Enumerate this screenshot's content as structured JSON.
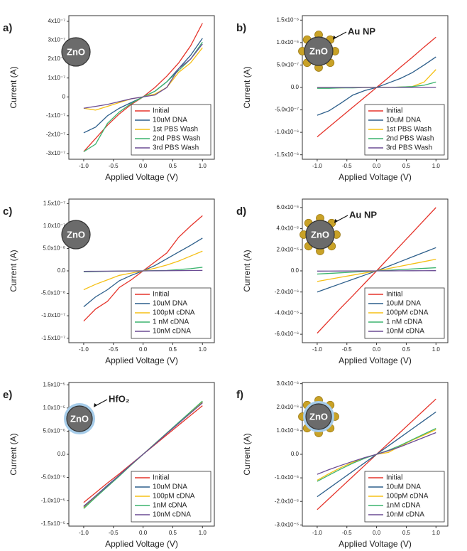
{
  "chart_data": [
    {
      "type": "line",
      "panel_label": "a)",
      "annotations": [
        "ZnO"
      ],
      "y_label": "Current (A)",
      "x_label": "Applied Voltage (V)",
      "x": [
        -1.0,
        -0.8,
        -0.6,
        -0.4,
        -0.2,
        0,
        0.2,
        0.4,
        0.6,
        0.8,
        1.0
      ],
      "xlim": [
        -1.25,
        1.2
      ],
      "xticks": [
        {
          "value": -1,
          "label": "-1.0"
        },
        -0.5,
        {
          "value": 0,
          "label": "0.0"
        },
        0.5,
        {
          "value": 1,
          "label": "1.0"
        }
      ],
      "ylim": [
        -3.3e-07,
        4.3e-07
      ],
      "yticks": [
        {
          "value": 4e-07,
          "label": "4x10⁻⁷"
        },
        {
          "value": 3e-07,
          "label": "3x10⁻⁷"
        },
        {
          "value": 2e-07,
          "label": "2x10⁻⁷"
        },
        {
          "value": 1e-07,
          "label": "1x10⁻⁷"
        },
        0,
        {
          "value": -1e-07,
          "label": "-1x10⁻⁷"
        },
        {
          "value": -2e-07,
          "label": "-2x10⁻⁷"
        },
        {
          "value": -3e-07,
          "label": "-3x10⁻⁷"
        }
      ],
      "legend": "lower right",
      "series": [
        {
          "name": "Initial",
          "color": "#e5332a",
          "values": [
            -2.9e-07,
            -2.2e-07,
            -1.5e-07,
            -9e-08,
            -4e-08,
            0,
            5e-08,
            1.1e-07,
            1.8e-07,
            2.7e-07,
            3.9e-07
          ]
        },
        {
          "name": "10uM DNA",
          "color": "#2d5f8b",
          "values": [
            -1.9e-07,
            -1.6e-07,
            -1e-07,
            -6e-08,
            -3e-08,
            0,
            3e-08,
            8e-08,
            1.5e-07,
            2.2e-07,
            3.1e-07
          ]
        },
        {
          "name": "1st PBS Wash",
          "color": "#f5c016",
          "values": [
            -6e-08,
            -7e-08,
            -5e-08,
            -3e-08,
            -1e-08,
            0,
            1.5e-08,
            5e-08,
            1.3e-07,
            1.8e-07,
            2.6e-07
          ]
        },
        {
          "name": "2nd PBS Wash",
          "color": "#3cb46e",
          "values": [
            -2.9e-07,
            -2.5e-07,
            -1.4e-07,
            -8e-08,
            -3.5e-08,
            0,
            3e-08,
            8e-08,
            1.4e-07,
            2e-07,
            2.9e-07
          ]
        },
        {
          "name": "3rd PBS Wash",
          "color": "#6b4c94",
          "values": [
            -6e-08,
            -5e-08,
            -4e-08,
            -2.5e-08,
            -1e-08,
            0,
            1e-08,
            5e-08,
            1.5e-07,
            2e-07,
            2.8e-07
          ]
        }
      ]
    },
    {
      "type": "line",
      "panel_label": "b)",
      "annotations": [
        "ZnO",
        "Au NP"
      ],
      "y_label": "Current (A)",
      "x_label": "Applied Voltage (V)",
      "x": [
        -1.0,
        -0.8,
        -0.6,
        -0.4,
        -0.2,
        0,
        0.2,
        0.4,
        0.6,
        0.8,
        1.0
      ],
      "xlim": [
        -1.25,
        1.2
      ],
      "xticks": [
        {
          "value": -1,
          "label": "-1.0"
        },
        -0.5,
        {
          "value": 0,
          "label": "0.0"
        },
        0.5,
        {
          "value": 1,
          "label": "1.0"
        }
      ],
      "ylim": [
        -1.6e-06,
        1.6e-06
      ],
      "yticks": [
        {
          "value": 1.5e-06,
          "label": "1.5x10⁻⁶"
        },
        {
          "value": 1e-06,
          "label": "1.0x10⁻⁶"
        },
        {
          "value": 5e-07,
          "label": "5.0x10⁻⁷"
        },
        {
          "value": 0,
          "label": "0.0"
        },
        {
          "value": -5e-07,
          "label": "-5.0x10⁻⁷"
        },
        {
          "value": -1e-06,
          "label": "-1.0x10⁻⁶"
        },
        {
          "value": -1.5e-06,
          "label": "-1.5x10⁻⁶"
        }
      ],
      "legend": "lower right",
      "series": [
        {
          "name": "Initial",
          "color": "#e5332a",
          "values": [
            -1.1e-06,
            -8.8e-07,
            -6.6e-07,
            -4.4e-07,
            -2.2e-07,
            0,
            2.2e-07,
            4.5e-07,
            6.7e-07,
            9e-07,
            1.12e-06
          ]
        },
        {
          "name": "10uM DNA",
          "color": "#2d5f8b",
          "values": [
            -6.2e-07,
            -5.2e-07,
            -3.5e-07,
            -1.7e-07,
            -7e-08,
            0,
            1e-07,
            2e-07,
            3.3e-07,
            5e-07,
            6.8e-07
          ]
        },
        {
          "name": "1st PBS Wash",
          "color": "#f5c016",
          "values": [
            -1e-08,
            -1e-08,
            -1e-08,
            0,
            0,
            0,
            0,
            1e-08,
            2e-08,
            1.2e-07,
            4e-07
          ]
        },
        {
          "name": "2nd PBS Wash",
          "color": "#3cb46e",
          "values": [
            -2e-08,
            -2e-08,
            -1e-08,
            -1e-08,
            0,
            0,
            0,
            1e-08,
            2e-08,
            5e-08,
            1.2e-07
          ]
        },
        {
          "name": "3rd PBS Wash",
          "color": "#6b4c94",
          "values": [
            0,
            0,
            0,
            0,
            0,
            0,
            0,
            0,
            0,
            0,
            0
          ]
        }
      ]
    },
    {
      "type": "line",
      "panel_label": "c)",
      "annotations": [
        "ZnO"
      ],
      "y_label": "Current (A)",
      "x_label": "Applied Voltage (V)",
      "x": [
        -1.0,
        -0.8,
        -0.6,
        -0.4,
        -0.2,
        0,
        0.2,
        0.4,
        0.6,
        0.8,
        1.0
      ],
      "xlim": [
        -1.25,
        1.2
      ],
      "xticks": [
        {
          "value": -1,
          "label": "-1.0"
        },
        -0.5,
        {
          "value": 0,
          "label": "0.0"
        },
        0.5,
        {
          "value": 1,
          "label": "1.0"
        }
      ],
      "ylim": [
        -1.6e-07,
        1.6e-07
      ],
      "yticks": [
        {
          "value": 1.5e-07,
          "label": "1.5x10⁻⁷"
        },
        {
          "value": 1e-07,
          "label": "1.0x10⁻⁷"
        },
        {
          "value": 5e-08,
          "label": "5.0x10⁻⁸"
        },
        {
          "value": 0,
          "label": "0.0"
        },
        {
          "value": -5e-08,
          "label": "-5.0x10⁻⁸"
        },
        {
          "value": -1e-07,
          "label": "-1.0x10⁻⁷"
        },
        {
          "value": -1.5e-07,
          "label": "-1.5x10⁻⁷"
        }
      ],
      "legend": "lower right",
      "series": [
        {
          "name": "Initial",
          "color": "#e5332a",
          "values": [
            -1.12e-07,
            -8.5e-08,
            -6.8e-08,
            -3.7e-08,
            -2e-08,
            0,
            2e-08,
            4e-08,
            7.5e-08,
            1e-07,
            1.23e-07
          ]
        },
        {
          "name": "10uM DNA",
          "color": "#2d5f8b",
          "values": [
            -8e-08,
            -5.8e-08,
            -4.2e-08,
            -2.2e-08,
            -1e-08,
            0,
            1.2e-08,
            2.7e-08,
            4.2e-08,
            5.7e-08,
            7.3e-08
          ]
        },
        {
          "name": "100pM cDNA",
          "color": "#f5c016",
          "values": [
            -4.2e-08,
            -3e-08,
            -2e-08,
            -1e-08,
            -5e-09,
            0,
            6e-09,
            1.3e-08,
            2.2e-08,
            3.3e-08,
            4.4e-08
          ]
        },
        {
          "name": "1 nM cDNA",
          "color": "#3cb46e",
          "values": [
            -2e-09,
            -1.5e-09,
            -1e-09,
            -5e-10,
            0,
            0,
            5e-10,
            1e-09,
            3e-09,
            5e-09,
            8e-09
          ]
        },
        {
          "name": "10nM cDNA",
          "color": "#6b4c94",
          "values": [
            -1e-09,
            -8e-10,
            -6e-10,
            -4e-10,
            -2e-10,
            0,
            2e-10,
            4e-10,
            6e-10,
            8e-10,
            1e-09
          ]
        }
      ]
    },
    {
      "type": "line",
      "panel_label": "d)",
      "annotations": [
        "ZnO",
        "Au NP"
      ],
      "y_label": "Current (A)",
      "x_label": "Applied Voltage (V)",
      "x": [
        -1.0,
        -0.8,
        -0.6,
        -0.4,
        -0.2,
        0,
        0.2,
        0.4,
        0.6,
        0.8,
        1.0
      ],
      "xlim": [
        -1.25,
        1.2
      ],
      "xticks": [
        {
          "value": -1,
          "label": "-1.0"
        },
        -0.5,
        {
          "value": 0,
          "label": "0.0"
        },
        0.5,
        {
          "value": 1,
          "label": "1.0"
        }
      ],
      "ylim": [
        -6.8e-06,
        6.8e-06
      ],
      "yticks": [
        {
          "value": 6e-06,
          "label": "6.0x10⁻⁶"
        },
        {
          "value": 4e-06,
          "label": "4.0x10⁻⁶"
        },
        {
          "value": 2e-06,
          "label": "2.0x10⁻⁶"
        },
        {
          "value": 0,
          "label": "0.0"
        },
        {
          "value": -2e-06,
          "label": "-2.0x10⁻⁶"
        },
        {
          "value": -4e-06,
          "label": "-4.0x10⁻⁶"
        },
        {
          "value": -6e-06,
          "label": "-6.0x10⁻⁶"
        }
      ],
      "legend": "lower right",
      "series": [
        {
          "name": "Initial",
          "color": "#e5332a",
          "values": [
            -5.9e-06,
            -4.7e-06,
            -3.5e-06,
            -2.35e-06,
            -1.17e-06,
            0,
            1.2e-06,
            2.4e-06,
            3.6e-06,
            4.8e-06,
            6e-06
          ]
        },
        {
          "name": "10uM DNA",
          "color": "#2d5f8b",
          "values": [
            -2e-06,
            -1.6e-06,
            -1.2e-06,
            -8e-07,
            -4e-07,
            0,
            4.4e-07,
            8.8e-07,
            1.32e-06,
            1.76e-06,
            2.2e-06
          ]
        },
        {
          "name": "100pM cDNA",
          "color": "#f5c016",
          "values": [
            -1e-06,
            -8e-07,
            -6e-07,
            -4e-07,
            -2e-07,
            0,
            2.2e-07,
            4.4e-07,
            6.6e-07,
            8.8e-07,
            1.1e-06
          ]
        },
        {
          "name": "1 nM cDNA",
          "color": "#3cb46e",
          "values": [
            -3e-07,
            -2.4e-07,
            -1.8e-07,
            -1.2e-07,
            -6e-08,
            0,
            6e-08,
            1.2e-07,
            1.8e-07,
            2.4e-07,
            3e-07
          ]
        },
        {
          "name": "10nM cDNA",
          "color": "#6b4c94",
          "values": [
            -2e-08,
            -1.6e-08,
            -1.2e-08,
            -8e-09,
            -4e-09,
            0,
            4e-09,
            8e-09,
            1.2e-08,
            1.6e-08,
            2e-08
          ]
        }
      ]
    },
    {
      "type": "line",
      "panel_label": "e)",
      "annotations": [
        "ZnO",
        "HfO₂"
      ],
      "y_label": "Current (A)",
      "x_label": "Applied Voltage (V)",
      "x": [
        -1.0,
        -0.8,
        -0.6,
        -0.4,
        -0.2,
        0,
        0.2,
        0.4,
        0.6,
        0.8,
        1.0
      ],
      "xlim": [
        -1.25,
        1.2
      ],
      "xticks": [
        {
          "value": -1,
          "label": "-1.0"
        },
        -0.5,
        {
          "value": 0,
          "label": "0.0"
        },
        0.5,
        {
          "value": 1,
          "label": "1.0"
        }
      ],
      "ylim": [
        -1.55e-05,
        1.55e-05
      ],
      "yticks": [
        {
          "value": 1.5e-05,
          "label": "1.5x10⁻⁵"
        },
        {
          "value": 1e-05,
          "label": "1.0x10⁻⁵"
        },
        {
          "value": 5e-06,
          "label": "5.0x10⁻⁶"
        },
        {
          "value": 0,
          "label": "0.0"
        },
        {
          "value": -5e-06,
          "label": "-5.0x10⁻⁶"
        },
        {
          "value": -1e-05,
          "label": "-1.0x10⁻⁵"
        },
        {
          "value": -1.5e-05,
          "label": "-1.5x10⁻⁵"
        }
      ],
      "legend": "lower right",
      "series": [
        {
          "name": "Initial",
          "color": "#e5332a",
          "values": [
            -1.04e-05,
            -8.3e-06,
            -6.2e-06,
            -4.2e-06,
            -2.1e-06,
            0,
            2.1e-06,
            4.2e-06,
            6.3e-06,
            8.4e-06,
            1.05e-05
          ]
        },
        {
          "name": "10uM DNA",
          "color": "#2d5f8b",
          "values": [
            -1.12e-05,
            -9e-06,
            -6.7e-06,
            -4.5e-06,
            -2.2e-06,
            0,
            2.2e-06,
            4.5e-06,
            6.7e-06,
            9e-06,
            1.12e-05
          ]
        },
        {
          "name": "100pM cDNA",
          "color": "#f5c016",
          "values": [
            -1.15e-05,
            -9.2e-06,
            -6.9e-06,
            -4.6e-06,
            -2.3e-06,
            0,
            2.3e-06,
            4.5e-06,
            6.8e-06,
            9.1e-06,
            1.14e-05
          ]
        },
        {
          "name": "1nM cDNA",
          "color": "#3cb46e",
          "values": [
            -1.17e-05,
            -9.3e-06,
            -7e-06,
            -4.7e-06,
            -2.3e-06,
            0,
            2.3e-06,
            4.6e-06,
            6.9e-06,
            9.2e-06,
            1.15e-05
          ]
        },
        {
          "name": "10nM cDNA",
          "color": "#6b4c94",
          "values": [
            -1.13e-05,
            -9e-06,
            -6.8e-06,
            -4.5e-06,
            -2.2e-06,
            0,
            2.2e-06,
            4.5e-06,
            6.7e-06,
            8.9e-06,
            1.11e-05
          ]
        }
      ]
    },
    {
      "type": "line",
      "panel_label": "f)",
      "annotations": [
        "ZnO"
      ],
      "y_label": "Current (A)",
      "x_label": "Applied Voltage (V)",
      "x": [
        -1.0,
        -0.8,
        -0.6,
        -0.4,
        -0.2,
        0,
        0.2,
        0.4,
        0.6,
        0.8,
        1.0
      ],
      "xlim": [
        -1.25,
        1.2
      ],
      "xticks": [
        {
          "value": -1,
          "label": "-1.0"
        },
        -0.5,
        {
          "value": 0,
          "label": "0.0"
        },
        0.5,
        {
          "value": 1,
          "label": "1.0"
        }
      ],
      "ylim": [
        -3.05e-06,
        3.05e-06
      ],
      "yticks": [
        {
          "value": 3e-06,
          "label": "3.0x10⁻⁶"
        },
        {
          "value": 2e-06,
          "label": "2.0x10⁻⁶"
        },
        {
          "value": 1e-06,
          "label": "1.0x10⁻⁶"
        },
        {
          "value": 0,
          "label": "0.0"
        },
        {
          "value": -1e-06,
          "label": "-1.0x10⁻⁶"
        },
        {
          "value": -2e-06,
          "label": "-2.0x10⁻⁶"
        },
        {
          "value": -3e-06,
          "label": "-3.0x10⁻⁶"
        }
      ],
      "legend": "lower right",
      "series": [
        {
          "name": "Initial",
          "color": "#e5332a",
          "values": [
            -2.35e-06,
            -1.88e-06,
            -1.41e-06,
            -9.4e-07,
            -4.7e-07,
            0,
            4.7e-07,
            9.4e-07,
            1.41e-06,
            1.88e-06,
            2.35e-06
          ]
        },
        {
          "name": "10uM DNA",
          "color": "#2d5f8b",
          "values": [
            -1.8e-06,
            -1.44e-06,
            -1.08e-06,
            -7.2e-07,
            -3.6e-07,
            0,
            3.6e-07,
            7.2e-07,
            1.08e-06,
            1.44e-06,
            1.8e-06
          ]
        },
        {
          "name": "100pM cDNA",
          "color": "#f5c016",
          "values": [
            -1.1e-06,
            -8.2e-07,
            -5.6e-07,
            -3.4e-07,
            -1.5e-07,
            0,
            8e-08,
            3.5e-07,
            6e-07,
            8.2e-07,
            1.05e-06
          ]
        },
        {
          "name": "1nM cDNA",
          "color": "#3cb46e",
          "values": [
            -1.15e-06,
            -8.8e-07,
            -6.2e-07,
            -3.8e-07,
            -1.7e-07,
            0,
            1.7e-07,
            3.8e-07,
            6.2e-07,
            8.6e-07,
            1.1e-06
          ]
        },
        {
          "name": "10nM cDNA",
          "color": "#6b4c94",
          "values": [
            -8.5e-07,
            -6.5e-07,
            -4.7e-07,
            -3e-07,
            -1.4e-07,
            0,
            1.5e-07,
            3.2e-07,
            5.2e-07,
            7.2e-07,
            9.2e-07
          ]
        }
      ]
    }
  ]
}
